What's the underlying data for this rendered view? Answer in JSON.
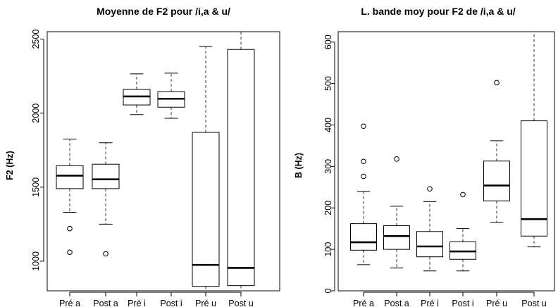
{
  "chart_data": [
    {
      "type": "boxplot",
      "title": "Moyenne de F2 pour /i,a & u/",
      "xlabel": "",
      "ylabel": "F2 (Hz)",
      "ylim": [
        800,
        2550
      ],
      "yticks": [
        1000,
        1500,
        2000,
        2500
      ],
      "categories": [
        "Pré a",
        "Post a",
        "Pré i",
        "Post i",
        "Pré u",
        "Post u"
      ],
      "boxes": [
        {
          "q1": 1490,
          "median": 1578,
          "q3": 1645,
          "whisker_low": 1330,
          "whisker_high": 1825,
          "outliers": [
            1220,
            1060
          ]
        },
        {
          "q1": 1490,
          "median": 1553,
          "q3": 1655,
          "whisker_low": 1250,
          "whisker_high": 1800,
          "outliers": [
            1050
          ]
        },
        {
          "q1": 2055,
          "median": 2113,
          "q3": 2160,
          "whisker_low": 1990,
          "whisker_high": 2265,
          "outliers": []
        },
        {
          "q1": 2040,
          "median": 2097,
          "q3": 2145,
          "whisker_low": 1965,
          "whisker_high": 2270,
          "outliers": []
        },
        {
          "q1": 830,
          "median": 975,
          "q3": 1870,
          "whisker_low": 780,
          "whisker_high": 2450,
          "outliers": []
        },
        {
          "q1": 835,
          "median": 955,
          "q3": 2430,
          "whisker_low": 760,
          "whisker_high": 2560,
          "outliers": []
        }
      ]
    },
    {
      "type": "boxplot",
      "title": "L. bande moy pour F2 de /i,a & u/",
      "xlabel": "",
      "ylabel": "B (Hz)",
      "ylim": [
        0,
        625
      ],
      "yticks": [
        0,
        100,
        200,
        300,
        400,
        500,
        600
      ],
      "categories": [
        "Pré a",
        "Post a",
        "Pré i",
        "Post i",
        "Pré u",
        "Post u"
      ],
      "boxes": [
        {
          "q1": 98,
          "median": 117,
          "q3": 162,
          "whisker_low": 63,
          "whisker_high": 240,
          "outliers": [
            397,
            276,
            312
          ]
        },
        {
          "q1": 100,
          "median": 132,
          "q3": 157,
          "whisker_low": 55,
          "whisker_high": 204,
          "outliers": [
            318
          ]
        },
        {
          "q1": 82,
          "median": 107,
          "q3": 143,
          "whisker_low": 48,
          "whisker_high": 215,
          "outliers": [
            246
          ]
        },
        {
          "q1": 76,
          "median": 95,
          "q3": 118,
          "whisker_low": 48,
          "whisker_high": 150,
          "outliers": [
            232
          ]
        },
        {
          "q1": 217,
          "median": 254,
          "q3": 313,
          "whisker_low": 165,
          "whisker_high": 362,
          "outliers": [
            502
          ]
        },
        {
          "q1": 132,
          "median": 173,
          "q3": 410,
          "whisker_low": 106,
          "whisker_high": 625,
          "outliers": []
        }
      ]
    }
  ]
}
